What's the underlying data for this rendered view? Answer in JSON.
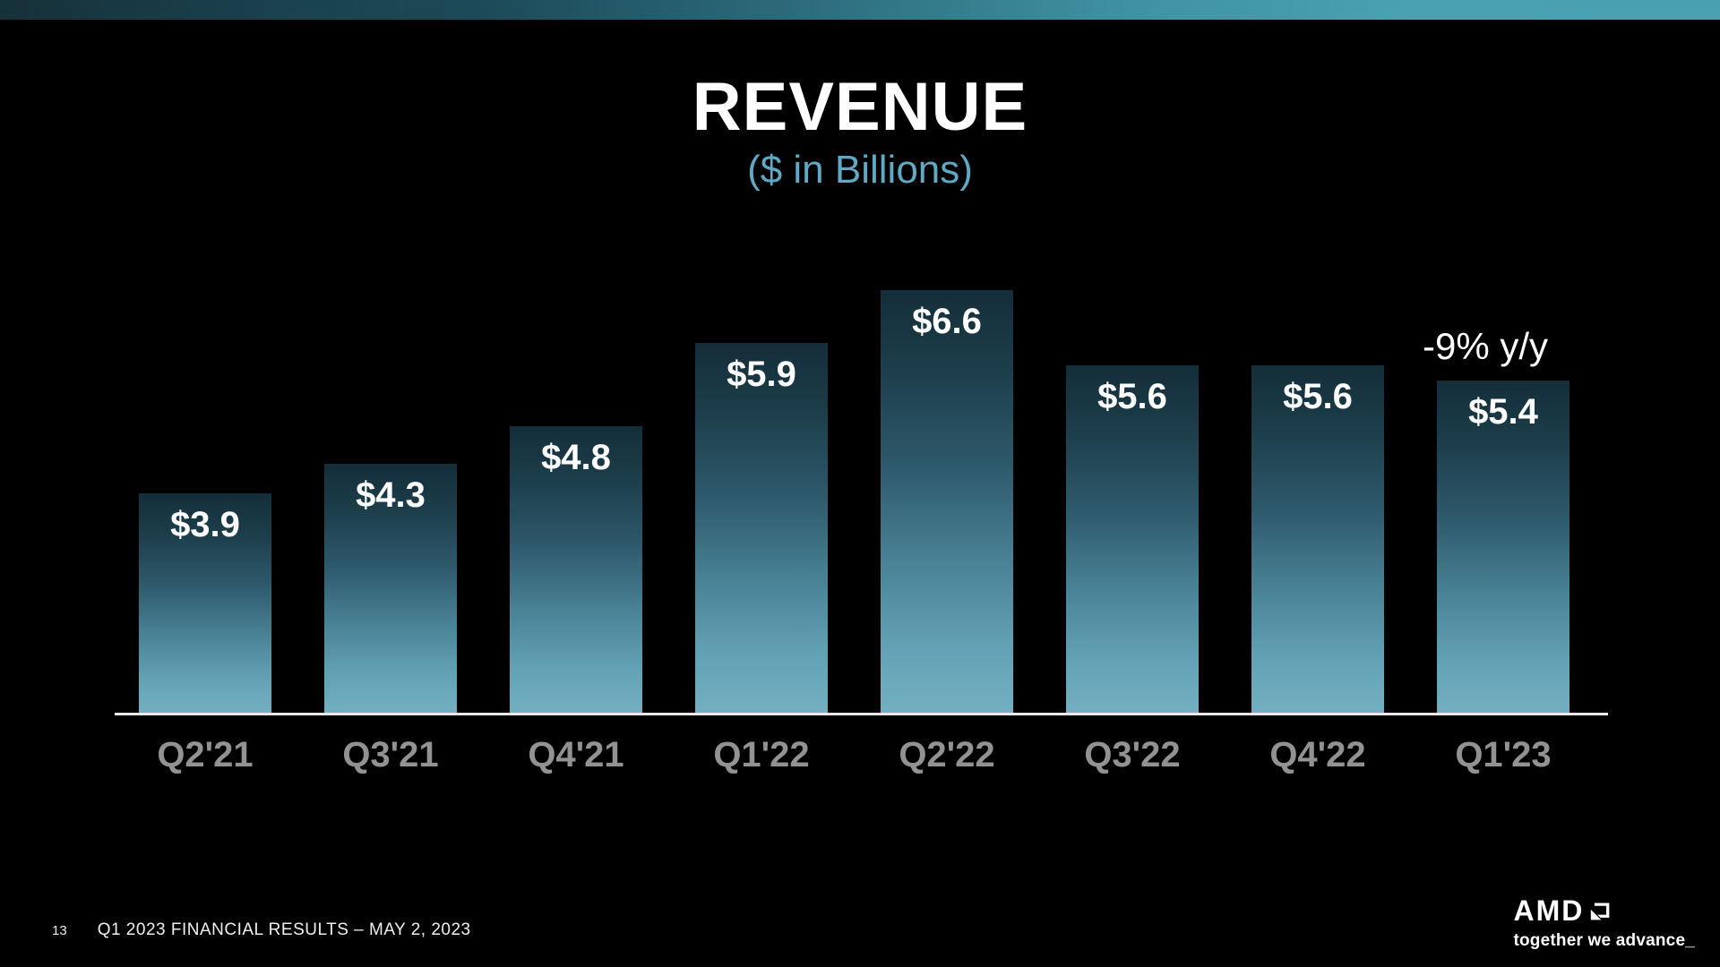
{
  "slide": {
    "title": "REVENUE",
    "subtitle": "($ in Billions)",
    "footer": {
      "page_number": "13",
      "text": "Q1 2023 FINANCIAL RESULTS – MAY 2, 2023"
    },
    "logo": {
      "brand": "AMD",
      "tagline": "together we advance_"
    }
  },
  "chart_data": {
    "type": "bar",
    "title": "REVENUE",
    "subtitle": "($ in Billions)",
    "categories": [
      "Q2'21",
      "Q3'21",
      "Q4'21",
      "Q1'22",
      "Q2'22",
      "Q3'22",
      "Q4'22",
      "Q1'23"
    ],
    "values": [
      3.9,
      4.3,
      4.8,
      5.9,
      6.6,
      5.6,
      5.6,
      5.4
    ],
    "value_labels": [
      "$3.9",
      "$4.3",
      "$4.8",
      "$5.9",
      "$6.6",
      "$5.6",
      "$5.6",
      "$5.4"
    ],
    "annotation": {
      "text": "-9% y/y",
      "target_index": 7
    },
    "xlabel": "",
    "ylabel": "",
    "ylim": [
      1,
      7
    ],
    "grid": false,
    "legend": null,
    "colors": {
      "background": "#000000",
      "bar_gradient_top": "#142e39",
      "bar_gradient_bottom": "#72afc1",
      "value_label": "#ffffff",
      "category_label": "#929292",
      "axis_line": "#e9e9e9",
      "subtitle": "#5fa9c5",
      "banner_left": "#0a262e",
      "banner_right": "#4aa1b0"
    }
  }
}
